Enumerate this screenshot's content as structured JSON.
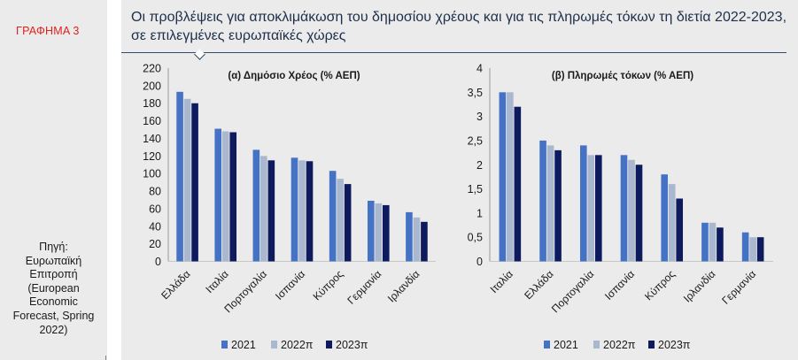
{
  "figure_label": "ΓΡΑΦΗΜΑ 3",
  "title_line1": "Οι προβλέψεις για αποκλιμάκωση του δημοσίου χρέους και για τις πληρωμές τόκων τη διετία 2022-2023,",
  "title_line2": "σε επιλεγμένες ευρωπαϊκές χώρες",
  "source_lines": [
    "Πηγή:",
    "Ευρωπαϊκή",
    "Επιτροπή",
    "(European",
    "Economic",
    "Forecast, Spring",
    "2022)"
  ],
  "colors": {
    "2021": "#4472c4",
    "2022π": "#a9b7cf",
    "2023π": "#0d1b5e",
    "title": "#1e2f4a",
    "label": "#e0201a"
  },
  "chart_data": [
    {
      "type": "bar",
      "title": "(α) Δημόσιο Χρέος (% ΑΕΠ)",
      "categories": [
        "Ελλάδα",
        "Ιταλία",
        "Πορτογαλία",
        "Ισπανία",
        "Κύπρος",
        "Γερμανία",
        "Ιρλανδία"
      ],
      "series": [
        {
          "name": "2021",
          "values": [
            193,
            151,
            127,
            118,
            103,
            69,
            56
          ]
        },
        {
          "name": "2022π",
          "values": [
            185,
            148,
            120,
            115,
            94,
            66,
            50
          ]
        },
        {
          "name": "2023π",
          "values": [
            180,
            147,
            115,
            114,
            88,
            64,
            45
          ]
        }
      ],
      "ylim": [
        0,
        220
      ],
      "yticks": [
        "0",
        "20",
        "40",
        "60",
        "80",
        "100",
        "120",
        "140",
        "160",
        "180",
        "200",
        "220"
      ],
      "grid": false,
      "legend": "bottom"
    },
    {
      "type": "bar",
      "title": "(β) Πληρωμές τόκων (% ΑΕΠ)",
      "categories": [
        "Ιταλία",
        "Ελλάδα",
        "Πορτογαλία",
        "Ισπανία",
        "Κύπρος",
        "Ιρλανδία",
        "Γερμανία"
      ],
      "series": [
        {
          "name": "2021",
          "values": [
            3.5,
            2.5,
            2.4,
            2.2,
            1.8,
            0.8,
            0.6
          ]
        },
        {
          "name": "2022π",
          "values": [
            3.5,
            2.4,
            2.2,
            2.1,
            1.6,
            0.8,
            0.5
          ]
        },
        {
          "name": "2023π",
          "values": [
            3.2,
            2.3,
            2.2,
            2.0,
            1.3,
            0.7,
            0.5
          ]
        }
      ],
      "ylim": [
        0,
        4
      ],
      "yticks": [
        "0",
        "0,5",
        "1",
        "1,5",
        "2",
        "2,5",
        "3",
        "3,5",
        "4"
      ],
      "grid": false,
      "legend": "bottom"
    }
  ]
}
